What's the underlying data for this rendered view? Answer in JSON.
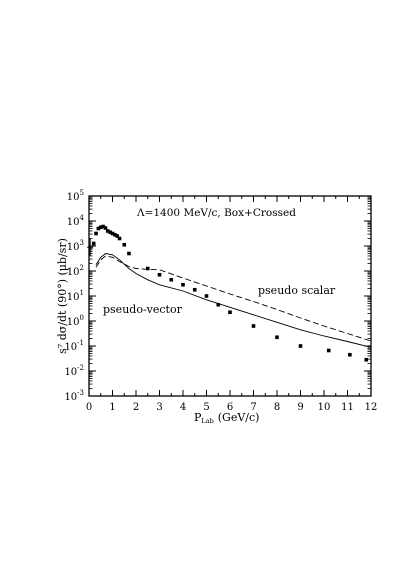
{
  "chart_data": {
    "type": "scatter",
    "annotation": "Λ=1400 MeV/c, Box+Crossed",
    "xlabel": "P",
    "xlabel_sub": "Lab",
    "xlabel_unit": "(GeV/c)",
    "ylabel": "s⁷ dσ/dt (90°) (μb/sr)",
    "xlim": [
      0,
      12
    ],
    "ylim_log10": [
      -3,
      5
    ],
    "yscale": "log",
    "x_ticks": [
      0,
      1,
      2,
      3,
      4,
      5,
      6,
      7,
      8,
      9,
      10,
      11,
      12
    ],
    "y_tick_exponents": [
      -3,
      -2,
      -1,
      0,
      1,
      2,
      3,
      4,
      5
    ],
    "y_tick_base": "10",
    "series": [
      {
        "name": "pseudo scalar",
        "style": "dashed",
        "x": [
          0.3,
          0.5,
          0.7,
          1.0,
          1.3,
          1.7,
          2.0,
          2.5,
          3.0,
          4.0,
          5.0,
          6.0,
          7.0,
          8.0,
          9.0,
          10.0,
          11.0,
          12.0
        ],
        "log10y": [
          2.15,
          2.45,
          2.6,
          2.55,
          2.38,
          2.18,
          2.1,
          2.07,
          2.05,
          1.72,
          1.4,
          1.08,
          0.78,
          0.46,
          0.12,
          -0.2,
          -0.5,
          -0.8
        ]
      },
      {
        "name": "pseudo-vector",
        "style": "solid",
        "x": [
          0.3,
          0.5,
          0.7,
          1.0,
          1.3,
          1.7,
          2.0,
          2.5,
          3.0,
          4.0,
          5.0,
          6.0,
          7.0,
          8.0,
          9.0,
          10.0,
          11.0,
          12.0
        ],
        "log10y": [
          2.25,
          2.55,
          2.7,
          2.65,
          2.45,
          2.1,
          1.9,
          1.65,
          1.45,
          1.2,
          0.85,
          0.55,
          0.25,
          -0.05,
          -0.35,
          -0.6,
          -0.82,
          -1.05
        ]
      },
      {
        "name": "data",
        "style": "points",
        "x": [
          0.2,
          0.3,
          0.4,
          0.5,
          0.6,
          0.7,
          0.8,
          0.9,
          1.0,
          1.1,
          1.2,
          1.3,
          1.5,
          1.7,
          2.5,
          3.0,
          3.5,
          4.0,
          4.5,
          5.0,
          5.5,
          6.0,
          7.0,
          8.0,
          9.0,
          10.2,
          11.1,
          11.8
        ],
        "log10y": [
          3.1,
          3.5,
          3.7,
          3.75,
          3.78,
          3.72,
          3.6,
          3.55,
          3.5,
          3.45,
          3.4,
          3.3,
          3.05,
          2.7,
          2.1,
          1.85,
          1.65,
          1.45,
          1.25,
          1.0,
          0.65,
          0.35,
          -0.2,
          -0.65,
          -1.0,
          -1.18,
          -1.35,
          -1.55
        ]
      }
    ],
    "errorbar_point": {
      "x": 0.05,
      "log10y": 2.95,
      "log10y_low": 2.6,
      "log10y_high": 3.3
    }
  },
  "labels": {
    "pseudo_scalar": "pseudo scalar",
    "pseudo_vector": "pseudo-vector"
  }
}
